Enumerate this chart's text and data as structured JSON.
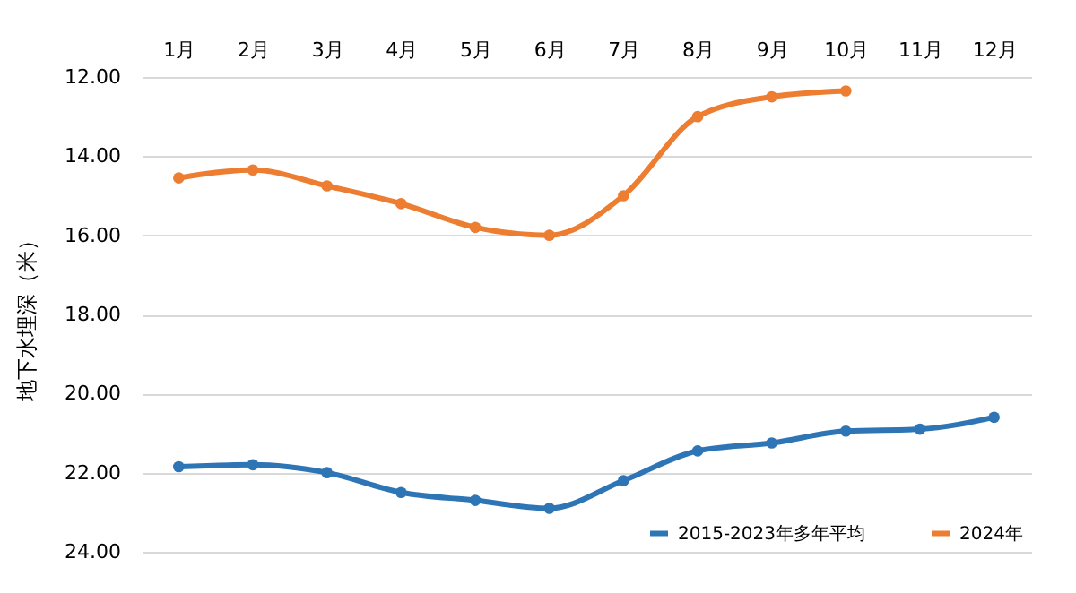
{
  "chart_data": {
    "type": "line",
    "ylabel": "地下水埋深（米）",
    "categories": [
      "1月",
      "2月",
      "3月",
      "4月",
      "5月",
      "6月",
      "7月",
      "8月",
      "9月",
      "10月",
      "11月",
      "12月"
    ],
    "series": [
      {
        "name": "2015-2023年多年平均",
        "color": "#2e75b6",
        "values": [
          21.85,
          21.8,
          22.0,
          22.5,
          22.7,
          22.9,
          22.2,
          21.45,
          21.25,
          20.95,
          20.9,
          20.6
        ]
      },
      {
        "name": "2024年",
        "color": "#ed7d31",
        "values": [
          14.55,
          14.35,
          14.75,
          15.2,
          15.8,
          16.0,
          15.0,
          13.0,
          12.5,
          12.35,
          null,
          null
        ]
      }
    ],
    "ylim": [
      24,
      12
    ],
    "yticks": [
      {
        "value": 12,
        "label": "12.00"
      },
      {
        "value": 14,
        "label": "14.00"
      },
      {
        "value": 16,
        "label": "16.00"
      },
      {
        "value": 18,
        "label": "18.00"
      },
      {
        "value": 20,
        "label": "20.00"
      },
      {
        "value": 22,
        "label": "22.00"
      },
      {
        "value": 24,
        "label": "24.00"
      }
    ],
    "grid": "y",
    "legend": "bottom right",
    "marker": "circle",
    "line_style": "solid"
  }
}
